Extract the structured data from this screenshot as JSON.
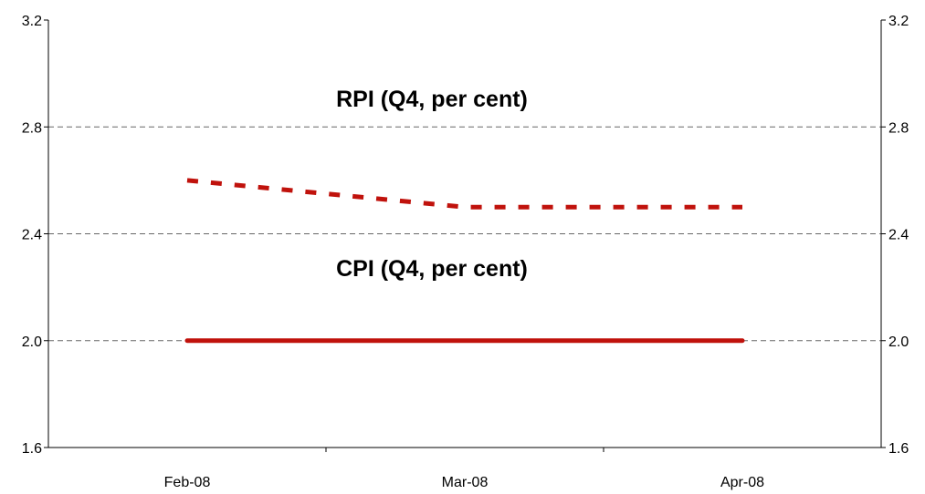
{
  "chart_data": {
    "type": "line",
    "title": "",
    "xlabel": "",
    "ylabel": "",
    "x": [
      "Feb-08",
      "Mar-08",
      "Apr-08"
    ],
    "ylim": [
      1.6,
      3.2
    ],
    "yticks": [
      "1.6",
      "2.0",
      "2.4",
      "2.8",
      "3.2"
    ],
    "ytick_values": [
      1.6,
      2.0,
      2.4,
      2.8,
      3.2
    ],
    "grid": "horizontal dashed",
    "axes": "dual y-axis (left and right, same scale)",
    "series": [
      {
        "label": "RPI (Q4, per cent)",
        "style": "dashed",
        "color": "#c0120c",
        "points": [
          {
            "x": "Feb-08",
            "y": 2.6
          },
          {
            "x": "Mar-08",
            "y": 2.5
          },
          {
            "x": "Apr-08",
            "y": 2.5
          }
        ]
      },
      {
        "label": "CPI (Q4, per cent)",
        "style": "solid",
        "color": "#c0120c",
        "points": [
          {
            "x": "Feb-08",
            "y": 2.0
          },
          {
            "x": "Mar-08",
            "y": 2.0
          },
          {
            "x": "Apr-08",
            "y": 2.0
          }
        ]
      }
    ]
  }
}
